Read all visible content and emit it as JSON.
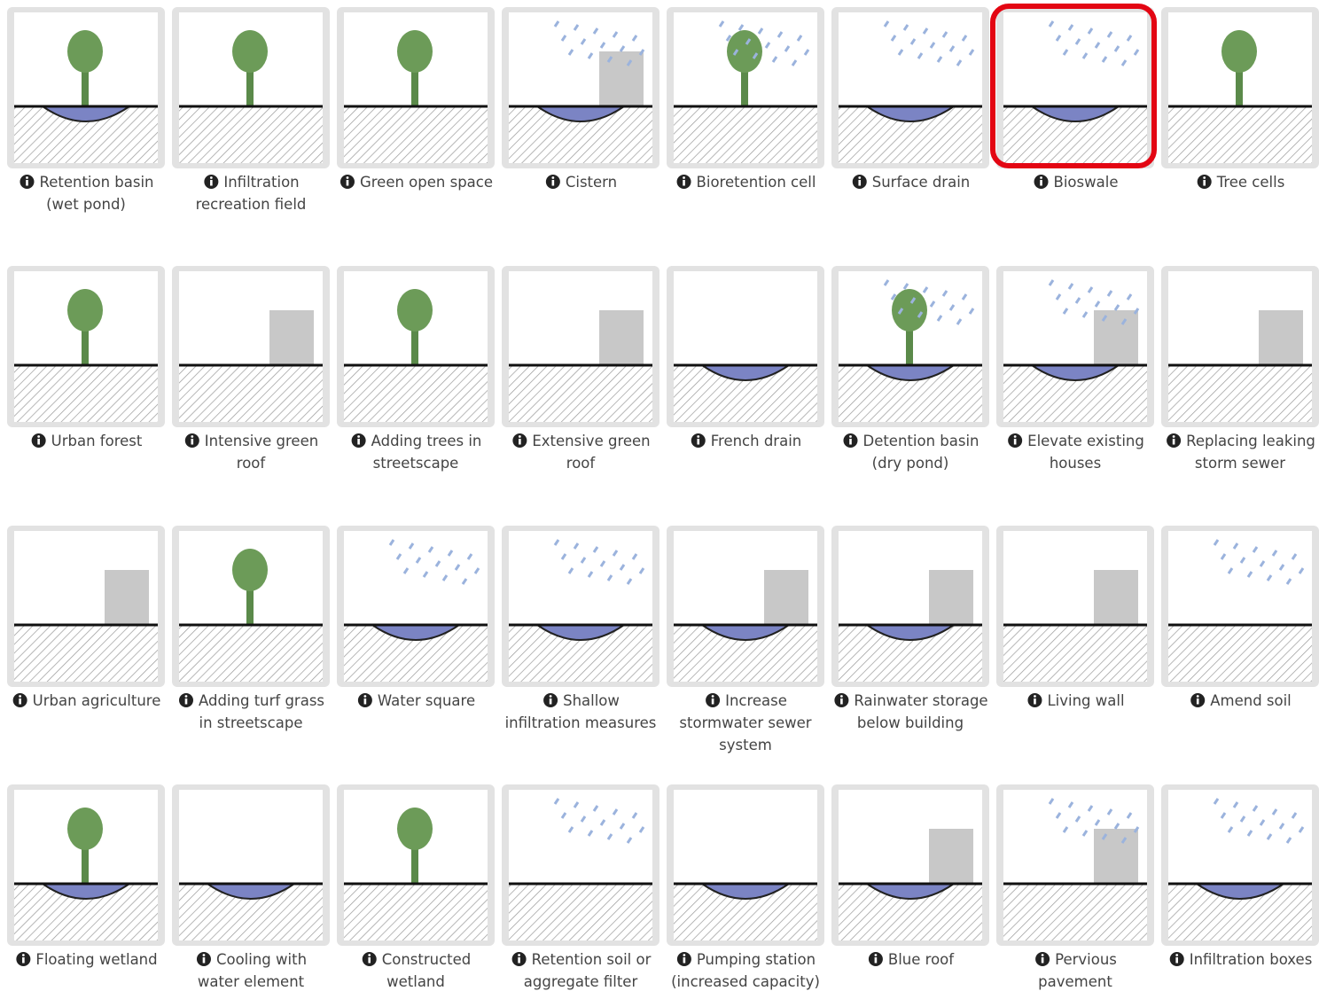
{
  "tiles": [
    {
      "lines": [
        "Retention basin",
        "(wet pond)"
      ]
    },
    {
      "lines": [
        "Infiltration",
        "recreation field"
      ]
    },
    {
      "lines": [
        "Green open space"
      ]
    },
    {
      "lines": [
        "Cistern"
      ]
    },
    {
      "lines": [
        "Bioretention cell"
      ]
    },
    {
      "lines": [
        "Surface drain"
      ]
    },
    {
      "lines": [
        "Bioswale"
      ],
      "selected": true
    },
    {
      "lines": [
        "Tree cells"
      ]
    },
    {
      "lines": [
        "Urban forest"
      ]
    },
    {
      "lines": [
        "Intensive green",
        "roof"
      ]
    },
    {
      "lines": [
        "Adding trees in",
        "streetscape"
      ]
    },
    {
      "lines": [
        "Extensive green",
        "roof"
      ]
    },
    {
      "lines": [
        "French drain"
      ]
    },
    {
      "lines": [
        "Detention basin",
        "(dry pond)"
      ]
    },
    {
      "lines": [
        "Elevate existing",
        "houses"
      ]
    },
    {
      "lines": [
        "Replacing leaking",
        "storm sewer"
      ]
    },
    {
      "lines": [
        "Urban agriculture"
      ]
    },
    {
      "lines": [
        "Adding turf grass",
        "in streetscape"
      ]
    },
    {
      "lines": [
        "Water square"
      ]
    },
    {
      "lines": [
        "Shallow",
        "infiltration measures"
      ]
    },
    {
      "lines": [
        "Increase",
        "stormwater sewer",
        "system"
      ]
    },
    {
      "lines": [
        "Rainwater storage",
        "below building"
      ]
    },
    {
      "lines": [
        "Living wall"
      ]
    },
    {
      "lines": [
        "Amend soil"
      ]
    },
    {
      "lines": [
        "Floating wetland"
      ]
    },
    {
      "lines": [
        "Cooling with",
        "water element"
      ]
    },
    {
      "lines": [
        "Constructed",
        "wetland"
      ]
    },
    {
      "lines": [
        "Retention soil or",
        "aggregate filter"
      ]
    },
    {
      "lines": [
        "Pumping station",
        "(increased capacity)"
      ]
    },
    {
      "lines": [
        "Blue roof"
      ]
    },
    {
      "lines": [
        "Pervious",
        "pavement"
      ]
    },
    {
      "lines": [
        "Infiltration boxes"
      ]
    }
  ]
}
